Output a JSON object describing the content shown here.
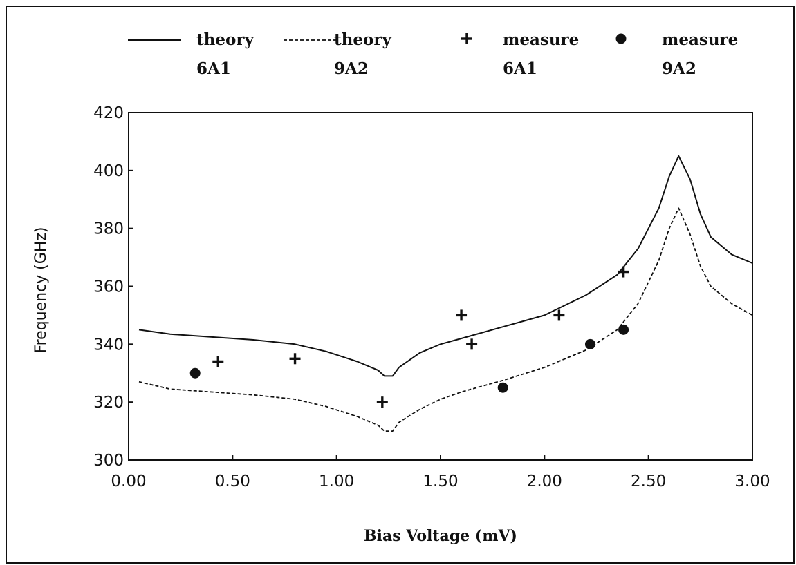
{
  "chart_data": {
    "type": "line",
    "title": "",
    "xlabel": "Bias Voltage (mV)",
    "ylabel": "Frequency (GHz)",
    "xlim": [
      0.0,
      3.0
    ],
    "ylim": [
      300,
      420
    ],
    "x_ticks": [
      "0.00",
      "0.50",
      "1.00",
      "1.50",
      "2.00",
      "2.50",
      "3.00"
    ],
    "y_ticks": [
      "300",
      "320",
      "340",
      "360",
      "380",
      "400",
      "420"
    ],
    "grid": false,
    "legend_position": "top",
    "legend": [
      {
        "line1": "theory",
        "line2": "6A1",
        "marker": "solid line"
      },
      {
        "line1": "theory",
        "line2": "9A2",
        "marker": "dashed line"
      },
      {
        "line1": "measure",
        "line2": "6A1",
        "marker": "plus"
      },
      {
        "line1": "measure",
        "line2": "9A2",
        "marker": "filled circle"
      }
    ],
    "series": [
      {
        "name": "theory 6A1",
        "style": "solid",
        "x": [
          0.05,
          0.2,
          0.4,
          0.6,
          0.8,
          0.95,
          1.1,
          1.2,
          1.23,
          1.27,
          1.3,
          1.4,
          1.5,
          1.6,
          1.8,
          2.0,
          2.2,
          2.35,
          2.45,
          2.55,
          2.6,
          2.645,
          2.7,
          2.75,
          2.8,
          2.9,
          3.0
        ],
        "y": [
          345,
          343.5,
          342.5,
          341.5,
          340,
          337.5,
          334,
          331,
          329,
          329,
          332,
          337,
          340,
          342,
          346,
          350,
          357,
          364,
          373,
          387,
          398,
          405,
          397,
          385,
          377,
          371,
          368
        ]
      },
      {
        "name": "theory 9A2",
        "style": "dashed",
        "x": [
          0.05,
          0.2,
          0.4,
          0.6,
          0.8,
          0.95,
          1.1,
          1.2,
          1.23,
          1.27,
          1.3,
          1.4,
          1.5,
          1.6,
          1.8,
          2.0,
          2.2,
          2.35,
          2.45,
          2.55,
          2.6,
          2.645,
          2.7,
          2.75,
          2.8,
          2.9,
          3.0
        ],
        "y": [
          327,
          324.5,
          323.5,
          322.5,
          321,
          318.5,
          315,
          312,
          310,
          310,
          313,
          317.5,
          321,
          323.5,
          327.5,
          332,
          338,
          345,
          354,
          369,
          380,
          387,
          378,
          367,
          360,
          354,
          350
        ]
      },
      {
        "name": "measure 6A1",
        "style": "plus",
        "x": [
          0.43,
          0.8,
          1.22,
          1.6,
          1.65,
          2.07,
          2.38
        ],
        "y": [
          334,
          335,
          320,
          350,
          340,
          350,
          365
        ]
      },
      {
        "name": "measure 9A2",
        "style": "circle",
        "x": [
          0.32,
          1.8,
          2.22,
          2.38
        ],
        "y": [
          330,
          325,
          340,
          345
        ]
      }
    ],
    "colors": {
      "ink": "#111111",
      "background": "#ffffff"
    }
  }
}
